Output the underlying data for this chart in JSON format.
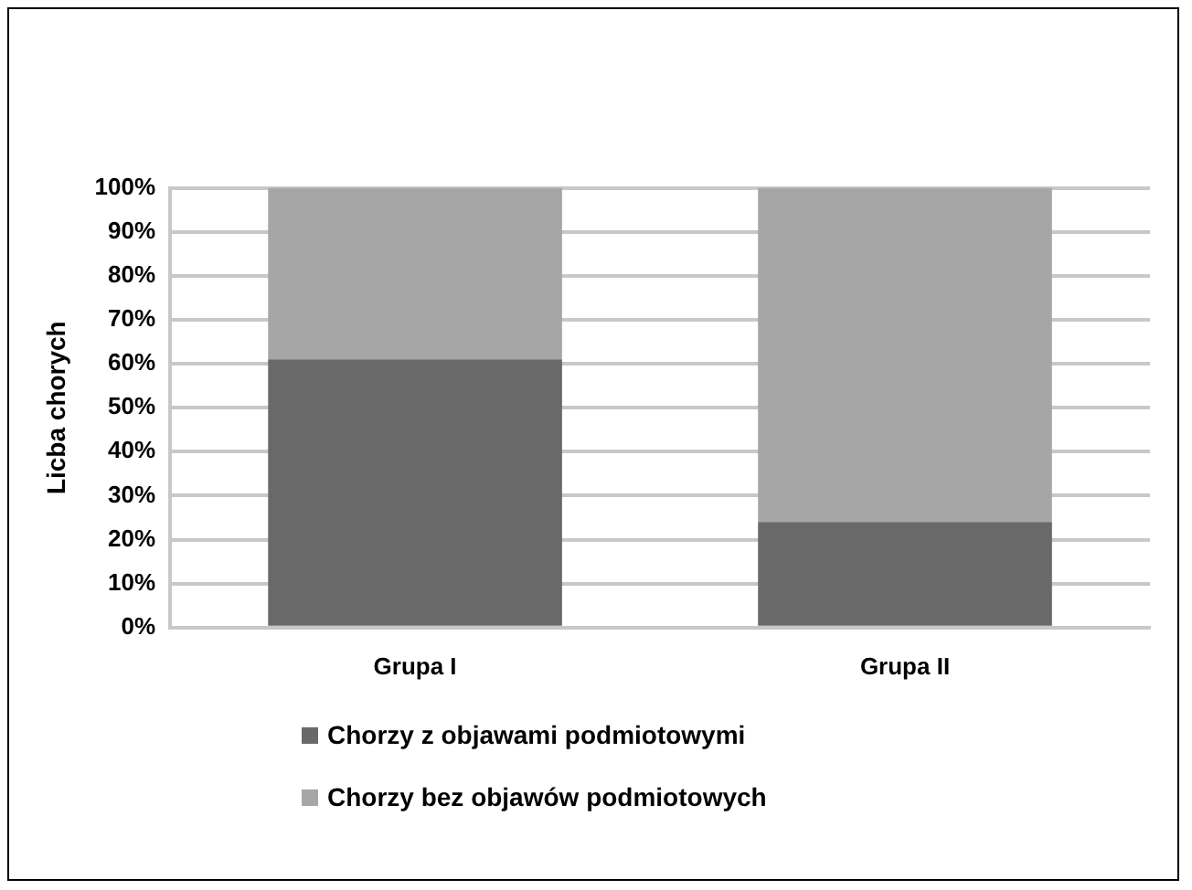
{
  "chart_data": {
    "type": "bar",
    "stacked": true,
    "ylabel": "Licba chorych",
    "categories": [
      "Grupa I",
      "Grupa II"
    ],
    "series": [
      {
        "name": "Chorzy z objawami podmiotowymi",
        "color": "#696969",
        "values": [
          61,
          24
        ]
      },
      {
        "name": "Chorzy bez objawów podmiotowych",
        "color": "#a6a6a6",
        "values": [
          39,
          76
        ]
      }
    ],
    "ylim": [
      0,
      100
    ],
    "yticks": [
      {
        "value": 0,
        "label": "0%"
      },
      {
        "value": 10,
        "label": "10%"
      },
      {
        "value": 20,
        "label": "20%"
      },
      {
        "value": 30,
        "label": "30%"
      },
      {
        "value": 40,
        "label": "40%"
      },
      {
        "value": 50,
        "label": "50%"
      },
      {
        "value": 60,
        "label": "60%"
      },
      {
        "value": 70,
        "label": "70%"
      },
      {
        "value": 80,
        "label": "80%"
      },
      {
        "value": 90,
        "label": "90%"
      },
      {
        "value": 100,
        "label": "100%"
      }
    ],
    "grid": "y",
    "legend": "bottom"
  }
}
